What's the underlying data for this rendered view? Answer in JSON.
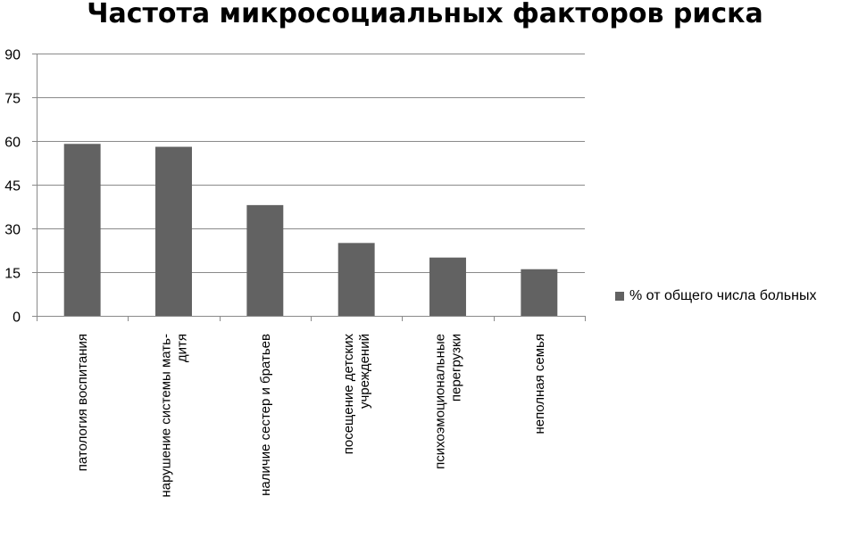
{
  "chart_data": {
    "type": "bar",
    "title": "Частота микросоциальных факторов риска",
    "categories": [
      [
        "патология воспитания"
      ],
      [
        "нарушение системы мать-",
        "дитя"
      ],
      [
        "наличие сестер и братьев"
      ],
      [
        "посещение детских",
        "учреждений"
      ],
      [
        "психоэмоциональные",
        "перегрузки"
      ],
      [
        "неполная семья"
      ]
    ],
    "series": [
      {
        "name": "% от общего числа больных",
        "values": [
          59,
          58,
          38,
          25,
          20,
          16
        ]
      }
    ],
    "ylim": [
      0,
      90
    ],
    "yticks": [
      "0",
      "15",
      "30",
      "45",
      "60",
      "75",
      "90"
    ],
    "grid": true,
    "legend_position": "right",
    "colors": {
      "bar": "#626262",
      "grid": "#8a8a8a",
      "axis": "#8a8a8a"
    }
  }
}
